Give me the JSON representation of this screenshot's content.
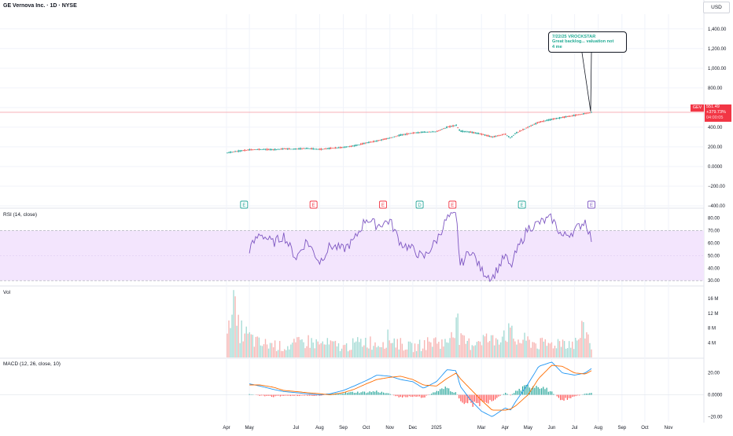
{
  "header": {
    "title": "GE Vernova Inc. · 1D · NYSE",
    "currency": "USD"
  },
  "price_tag": {
    "symbol": "GEV",
    "price": "551.49",
    "change": "+379.73%",
    "countdown": "04:00:05"
  },
  "annotation": {
    "line1": "7/22/25 VROCKSTAR",
    "line2": "Great backlog... valuation not",
    "line3": "4 me"
  },
  "colors": {
    "up": "#26a69a",
    "down": "#ef5350",
    "rsi_line": "#7e57c2",
    "rsi_band": "#f3e5fd",
    "macd_line": "#2196f3",
    "signal_line": "#ff6d00",
    "price_line": "#f23645",
    "grid": "#f0f3fa"
  },
  "chart_data": [
    {
      "type": "line",
      "name": "price",
      "title": "GE Vernova Inc. · 1D · NYSE",
      "yticks": [
        "1,400.00",
        "1,200.00",
        "1,000.00",
        "800.00",
        "600.00",
        "400.00",
        "200.00",
        "0.0000",
        "−200.00",
        "−400.00"
      ],
      "ytick_values": [
        1400,
        1200,
        1000,
        800,
        600,
        400,
        200,
        0,
        -200,
        -400
      ],
      "ylim": [
        -400,
        1550
      ],
      "last_price": 551.49,
      "x": [
        "2024-04-02",
        "2024-04-15",
        "2024-05-01",
        "2024-05-15",
        "2024-06-01",
        "2024-06-15",
        "2024-07-01",
        "2024-07-15",
        "2024-08-01",
        "2024-08-15",
        "2024-09-01",
        "2024-09-15",
        "2024-10-01",
        "2024-10-15",
        "2024-11-01",
        "2024-11-15",
        "2024-12-01",
        "2024-12-15",
        "2025-01-01",
        "2025-01-15",
        "2025-01-27",
        "2025-02-01",
        "2025-02-15",
        "2025-03-01",
        "2025-03-15",
        "2025-04-01",
        "2025-04-08",
        "2025-04-15",
        "2025-05-01",
        "2025-05-15",
        "2025-06-01",
        "2025-06-15",
        "2025-07-01",
        "2025-07-15",
        "2025-07-23"
      ],
      "values": [
        140,
        155,
        170,
        175,
        172,
        180,
        178,
        185,
        175,
        185,
        195,
        210,
        240,
        260,
        290,
        320,
        340,
        350,
        355,
        400,
        420,
        360,
        350,
        330,
        300,
        330,
        290,
        340,
        400,
        450,
        480,
        500,
        520,
        540,
        551
      ]
    },
    {
      "type": "line",
      "name": "RSI",
      "title": "RSI (14, close)",
      "yticks": [
        "80.00",
        "70.00",
        "60.00",
        "50.00",
        "40.00",
        "30.00"
      ],
      "ytick_values": [
        80,
        70,
        60,
        50,
        40,
        30
      ],
      "ylim": [
        27,
        86
      ],
      "band": [
        30,
        70
      ],
      "x": [
        "2024-05-01",
        "2024-05-15",
        "2024-06-01",
        "2024-06-15",
        "2024-07-01",
        "2024-07-15",
        "2024-08-01",
        "2024-08-15",
        "2024-09-01",
        "2024-09-15",
        "2024-10-01",
        "2024-10-15",
        "2024-11-01",
        "2024-11-15",
        "2024-12-01",
        "2024-12-15",
        "2025-01-01",
        "2025-01-15",
        "2025-01-27",
        "2025-02-01",
        "2025-02-15",
        "2025-03-01",
        "2025-03-15",
        "2025-04-01",
        "2025-04-08",
        "2025-04-15",
        "2025-05-01",
        "2025-05-15",
        "2025-06-01",
        "2025-06-15",
        "2025-07-01",
        "2025-07-15",
        "2025-07-23"
      ],
      "values": [
        55,
        68,
        60,
        66,
        48,
        62,
        45,
        58,
        55,
        62,
        80,
        74,
        78,
        60,
        55,
        48,
        62,
        80,
        82,
        42,
        55,
        38,
        32,
        50,
        40,
        52,
        72,
        76,
        80,
        65,
        70,
        78,
        63
      ]
    },
    {
      "type": "bar",
      "name": "Volume",
      "title": "Vol",
      "yticks": [
        "16 M",
        "12 M",
        "8 M",
        "4 M"
      ],
      "ytick_values": [
        16,
        12,
        8,
        4
      ],
      "ylim": [
        0,
        19
      ],
      "unit": "M",
      "x": [
        "2024-04-02",
        "2024-04-05",
        "2024-04-10",
        "2024-04-15",
        "2024-05-01",
        "2024-05-15",
        "2024-06-01",
        "2024-06-15",
        "2024-07-01",
        "2024-07-15",
        "2024-08-01",
        "2024-08-15",
        "2024-09-01",
        "2024-09-15",
        "2024-10-01",
        "2024-10-15",
        "2024-11-01",
        "2024-11-15",
        "2024-12-01",
        "2024-12-15",
        "2025-01-01",
        "2025-01-15",
        "2025-01-27",
        "2025-02-01",
        "2025-02-15",
        "2025-03-01",
        "2025-03-15",
        "2025-04-01",
        "2025-04-08",
        "2025-04-15",
        "2025-05-01",
        "2025-05-15",
        "2025-06-01",
        "2025-06-15",
        "2025-07-01",
        "2025-07-15",
        "2025-07-23"
      ],
      "values": [
        5,
        18,
        16,
        9,
        6,
        4,
        4,
        3,
        4,
        5,
        4,
        4,
        3,
        4,
        5,
        4,
        6,
        4,
        3,
        4,
        5,
        4,
        13,
        5,
        4,
        6,
        5,
        8,
        7,
        5,
        5,
        4,
        4,
        5,
        4,
        9,
        3
      ]
    },
    {
      "type": "line",
      "name": "MACD",
      "title": "MACD (12, 26, close, 10)",
      "yticks": [
        "20.00",
        "0.0000",
        "−20.00"
      ],
      "ytick_values": [
        20,
        0,
        -20
      ],
      "ylim": [
        -24,
        32
      ],
      "x": [
        "2024-05-01",
        "2024-05-15",
        "2024-06-01",
        "2024-06-15",
        "2024-07-01",
        "2024-07-15",
        "2024-08-01",
        "2024-08-15",
        "2024-09-01",
        "2024-09-15",
        "2024-10-01",
        "2024-10-15",
        "2024-11-01",
        "2024-11-15",
        "2024-12-01",
        "2024-12-15",
        "2025-01-01",
        "2025-01-15",
        "2025-01-27",
        "2025-02-01",
        "2025-02-15",
        "2025-03-01",
        "2025-03-15",
        "2025-04-01",
        "2025-04-08",
        "2025-04-15",
        "2025-05-01",
        "2025-05-15",
        "2025-06-01",
        "2025-06-15",
        "2025-07-01",
        "2025-07-15",
        "2025-07-23"
      ],
      "series": [
        {
          "name": "MACD",
          "values": [
            10,
            8,
            5,
            3,
            2,
            1,
            0,
            1,
            4,
            8,
            13,
            18,
            17,
            14,
            12,
            6,
            12,
            23,
            22,
            8,
            -5,
            -15,
            -20,
            -12,
            -14,
            -6,
            10,
            26,
            30,
            20,
            18,
            20,
            24
          ]
        },
        {
          "name": "Signal",
          "values": [
            9,
            9,
            7,
            4,
            3,
            2,
            1,
            0,
            2,
            5,
            10,
            14,
            16,
            17,
            14,
            9,
            8,
            15,
            20,
            15,
            5,
            -5,
            -14,
            -14,
            -13,
            -10,
            0,
            15,
            27,
            26,
            20,
            19,
            22
          ]
        },
        {
          "name": "Histogram",
          "values": [
            1,
            -1,
            -2,
            -1,
            -1,
            -1,
            -1,
            1,
            2,
            3,
            3,
            4,
            1,
            -3,
            -2,
            -3,
            4,
            8,
            2,
            -7,
            -10,
            -10,
            -6,
            2,
            -1,
            4,
            10,
            11,
            3,
            -6,
            -2,
            1,
            2
          ]
        }
      ]
    }
  ],
  "x_axis": {
    "tick_labels": [
      "Apr",
      "May",
      "Jul",
      "Aug",
      "Sep",
      "Oct",
      "Nov",
      "Dec",
      "2025",
      "Mar",
      "Apr",
      "May",
      "Jun",
      "Jul",
      "Aug",
      "Sep",
      "Oct",
      "Nov"
    ],
    "tick_dates": [
      "2024-04-01",
      "2024-05-01",
      "2024-07-01",
      "2024-08-01",
      "2024-09-01",
      "2024-10-01",
      "2024-11-01",
      "2024-12-01",
      "2025-01-01",
      "2025-03-01",
      "2025-04-01",
      "2025-05-01",
      "2025-06-01",
      "2025-07-01",
      "2025-08-01",
      "2025-09-01",
      "2025-10-01",
      "2025-11-01"
    ]
  },
  "events": [
    {
      "label": "E",
      "color": "#26a69a",
      "date": "2024-04-24"
    },
    {
      "label": "E",
      "color": "#f23645",
      "date": "2024-07-24"
    },
    {
      "label": "E",
      "color": "#f23645",
      "date": "2024-10-23"
    },
    {
      "label": "D",
      "color": "#26a69a",
      "date": "2024-12-10"
    },
    {
      "label": "E",
      "color": "#f23645",
      "date": "2025-01-22"
    },
    {
      "label": "E",
      "color": "#26a69a",
      "date": "2025-04-23"
    },
    {
      "label": "E",
      "color": "#7e57c2",
      "date": "2025-07-23"
    }
  ]
}
